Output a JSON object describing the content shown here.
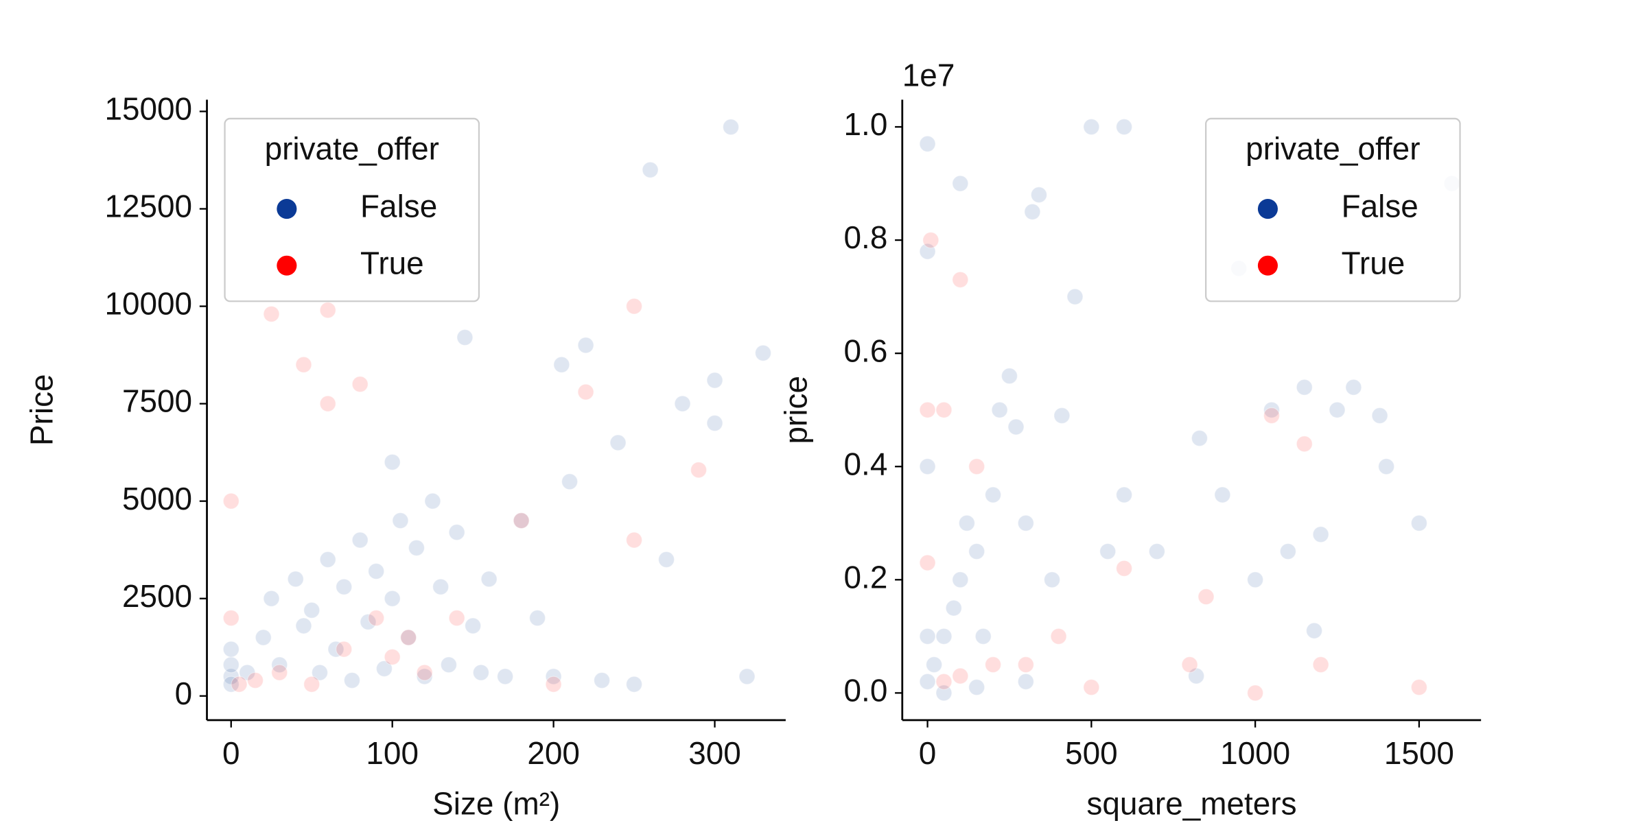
{
  "chart_data": [
    {
      "type": "scatter",
      "xlabel": "Size (m²)",
      "ylabel": "Price",
      "xlim": [
        -15,
        344
      ],
      "ylim": [
        -620,
        15300
      ],
      "xticks": [
        0,
        100,
        200,
        300
      ],
      "yticks": [
        0,
        2500,
        5000,
        7500,
        10000,
        12500,
        15000
      ],
      "legend_title": "private_offer",
      "legend_position": "upper left",
      "series": [
        {
          "name": "False",
          "color": "#0b3a96",
          "x": [
            0,
            0,
            0,
            0,
            10,
            20,
            25,
            30,
            40,
            45,
            50,
            55,
            60,
            65,
            70,
            75,
            80,
            85,
            90,
            95,
            100,
            100,
            105,
            110,
            115,
            120,
            125,
            130,
            135,
            140,
            145,
            150,
            155,
            160,
            170,
            180,
            190,
            200,
            205,
            210,
            220,
            230,
            240,
            250,
            260,
            270,
            280,
            300,
            300,
            310,
            330,
            320
          ],
          "values": [
            500,
            800,
            1200,
            300,
            600,
            1500,
            2500,
            800,
            3000,
            1800,
            2200,
            600,
            3500,
            1200,
            2800,
            400,
            4000,
            1900,
            3200,
            700,
            6000,
            2500,
            4500,
            1500,
            3800,
            500,
            5000,
            2800,
            800,
            4200,
            9200,
            1800,
            600,
            3000,
            500,
            4500,
            2000,
            500,
            8500,
            5500,
            9000,
            400,
            6500,
            300,
            13500,
            3500,
            7500,
            7000,
            8100,
            14600,
            8800,
            500
          ]
        },
        {
          "name": "True",
          "color": "#ff0000",
          "x": [
            0,
            0,
            5,
            15,
            25,
            30,
            45,
            50,
            60,
            60,
            70,
            80,
            90,
            100,
            110,
            120,
            140,
            180,
            200,
            220,
            250,
            250,
            290
          ],
          "values": [
            5000,
            2000,
            300,
            400,
            9800,
            600,
            8500,
            300,
            9900,
            7500,
            1200,
            8000,
            2000,
            1000,
            1500,
            600,
            2000,
            4500,
            300,
            7800,
            10000,
            4000,
            5800
          ]
        }
      ]
    },
    {
      "type": "scatter",
      "xlabel": "square_meters",
      "ylabel": "price",
      "offset_text": "1e7",
      "xlim": [
        -77,
        1689
      ],
      "ylim": [
        -0.048,
        1.048
      ],
      "xticks": [
        0,
        500,
        1000,
        1500
      ],
      "yticks": [
        {
          "value": 0,
          "label": "0.0"
        },
        0.2,
        0.4,
        0.6,
        0.8,
        {
          "value": 1,
          "label": "1.0"
        }
      ],
      "legend_title": "private_offer",
      "legend_position": "upper right",
      "series": [
        {
          "name": "False",
          "color": "#0b3a96",
          "x": [
            0,
            0,
            0,
            0,
            0,
            20,
            50,
            80,
            100,
            100,
            120,
            150,
            170,
            200,
            220,
            250,
            270,
            300,
            320,
            340,
            380,
            410,
            450,
            500,
            600,
            550,
            600,
            700,
            830,
            900,
            950,
            1000,
            1050,
            1100,
            1150,
            1180,
            1250,
            1300,
            1380,
            1400,
            1500,
            1600,
            1200,
            820,
            300,
            150,
            50
          ],
          "values": [
            0.97,
            0.78,
            0.4,
            0.1,
            0.02,
            0.05,
            0.1,
            0.15,
            0.9,
            0.2,
            0.3,
            0.25,
            0.1,
            0.35,
            0.5,
            0.56,
            0.47,
            0.3,
            0.85,
            0.88,
            0.2,
            0.49,
            0.7,
            1.0,
            1.0,
            0.25,
            0.35,
            0.25,
            0.45,
            0.35,
            0.75,
            0.2,
            0.5,
            0.25,
            0.54,
            0.11,
            0.5,
            0.54,
            0.49,
            0.4,
            0.3,
            0.9,
            0.28,
            0.03,
            0.02,
            0.01,
            0.0
          ]
        },
        {
          "name": "True",
          "color": "#ff0000",
          "x": [
            0,
            0,
            10,
            50,
            100,
            50,
            100,
            200,
            300,
            400,
            500,
            800,
            850,
            1000,
            1050,
            1150,
            1200,
            1500,
            600,
            150
          ],
          "values": [
            0.23,
            0.5,
            0.8,
            0.5,
            0.73,
            0.02,
            0.03,
            0.05,
            0.05,
            0.1,
            0.01,
            0.05,
            0.17,
            0.0,
            0.49,
            0.44,
            0.05,
            0.01,
            0.22,
            0.4
          ]
        }
      ]
    }
  ]
}
